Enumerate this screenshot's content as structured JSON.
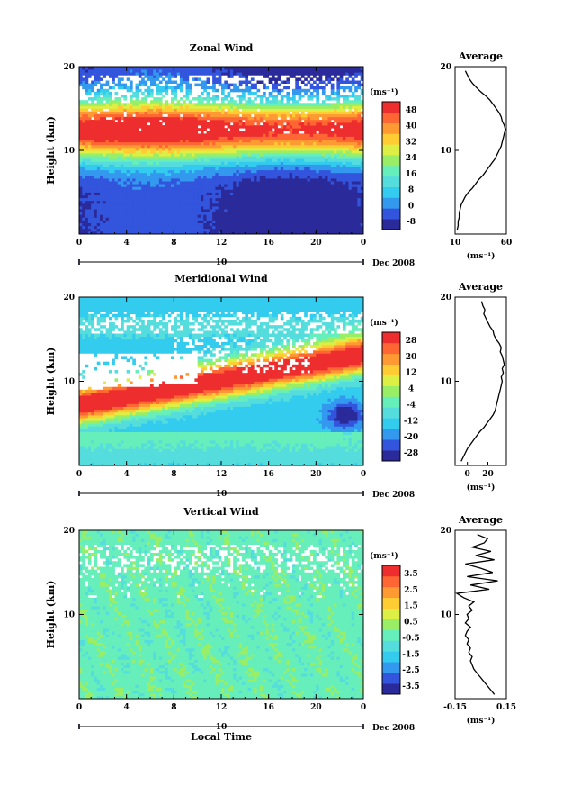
{
  "figure": {
    "x_label": "Local Time",
    "date_label": "Dec 2008",
    "date_day_label": "10",
    "y_label": "Height (km)",
    "avg_title": "Average",
    "unit_label": "(ms⁻¹)"
  },
  "chart_data": [
    {
      "type": "heatmap",
      "title": "Zonal Wind",
      "x_ticks": [
        "0",
        "4",
        "8",
        "12",
        "16",
        "20",
        "0"
      ],
      "y_ticks": [
        "20",
        "10"
      ],
      "xlim": [
        0,
        24
      ],
      "ylim": [
        0,
        20
      ],
      "colorbar": {
        "unit": "(ms⁻¹)",
        "ticks": [
          "48",
          "40",
          "32",
          "24",
          "16",
          "8",
          "0",
          "-8"
        ],
        "range": [
          -8,
          52
        ]
      },
      "profile": {
        "title": "Average",
        "x_ticks": [
          "10",
          "60"
        ],
        "xlim": [
          10,
          60
        ],
        "height": [
          0.5,
          1,
          1.5,
          2,
          2.5,
          3,
          3.5,
          4,
          4.5,
          5,
          5.5,
          6,
          6.5,
          7,
          7.5,
          8,
          8.5,
          9,
          9.5,
          10,
          10.5,
          11,
          11.5,
          12,
          12.5,
          13,
          13.5,
          14,
          14.5,
          15,
          15.5,
          16,
          16.5,
          17,
          17.5,
          18,
          18.5,
          19,
          19.5
        ],
        "values": [
          12,
          13,
          13,
          14,
          14,
          15,
          16,
          18,
          20,
          23,
          27,
          30,
          33,
          37,
          40,
          43,
          46,
          49,
          51,
          53,
          55,
          56,
          57,
          58,
          59,
          58,
          56,
          55,
          53,
          50,
          47,
          44,
          40,
          35,
          31,
          27,
          24,
          22,
          20
        ]
      }
    },
    {
      "type": "heatmap",
      "title": "Meridional Wind",
      "x_ticks": [
        "0",
        "4",
        "8",
        "12",
        "16",
        "20",
        "0"
      ],
      "y_ticks": [
        "20",
        "10"
      ],
      "xlim": [
        0,
        24
      ],
      "ylim": [
        0,
        20
      ],
      "colorbar": {
        "unit": "(ms⁻¹)",
        "ticks": [
          "28",
          "20",
          "12",
          "4",
          "-4",
          "-12",
          "-20",
          "-28"
        ],
        "range": [
          -32,
          32
        ]
      },
      "profile": {
        "title": "Average",
        "x_ticks": [
          "0",
          "20"
        ],
        "xlim": [
          -12,
          38
        ],
        "height": [
          0.5,
          1,
          1.5,
          2,
          2.5,
          3,
          3.5,
          4,
          4.5,
          5,
          5.5,
          6,
          6.5,
          7,
          7.5,
          8,
          8.5,
          9,
          9.5,
          10,
          10.5,
          11,
          11.5,
          12,
          12.5,
          13,
          13.5,
          14,
          14.5,
          15,
          15.5,
          16,
          16.5,
          17,
          17.5,
          18,
          18.5,
          19,
          19.5
        ],
        "values": [
          -6,
          -4,
          -2,
          0,
          3,
          6,
          9,
          12,
          16,
          19,
          22,
          25,
          27,
          28,
          29,
          30,
          31,
          32,
          33,
          34,
          33,
          35,
          34,
          36,
          35,
          34,
          32,
          33,
          31,
          28,
          26,
          25,
          22,
          20,
          18,
          16,
          17,
          15,
          14
        ]
      }
    },
    {
      "type": "heatmap",
      "title": "Vertical Wind",
      "x_ticks": [
        "0",
        "4",
        "8",
        "12",
        "16",
        "20",
        "0"
      ],
      "y_ticks": [
        "20",
        "10"
      ],
      "xlim": [
        0,
        24
      ],
      "ylim": [
        0,
        20
      ],
      "colorbar": {
        "unit": "(ms⁻¹)",
        "ticks": [
          "3.5",
          "2.5",
          "1.5",
          "0.5",
          "-0.5",
          "-1.5",
          "-2.5",
          "-3.5"
        ],
        "range": [
          -4,
          4
        ]
      },
      "profile": {
        "title": "Average",
        "x_ticks": [
          "-0.15",
          "0.15"
        ],
        "xlim": [
          -0.15,
          0.15
        ],
        "height": [
          0.5,
          1,
          1.5,
          2,
          2.5,
          3,
          3.5,
          4,
          4.5,
          5,
          5.5,
          6,
          6.5,
          7,
          7.5,
          8,
          8.5,
          9,
          9.5,
          10,
          10.5,
          11,
          11.5,
          12,
          12.5,
          13,
          13.5,
          14,
          14.5,
          15,
          15.5,
          16,
          16.5,
          17,
          17.5,
          18,
          18.5,
          19,
          19.5
        ],
        "values": [
          0.08,
          0.06,
          0.04,
          0.02,
          0.0,
          -0.02,
          -0.04,
          -0.05,
          -0.06,
          -0.05,
          -0.07,
          -0.06,
          -0.08,
          -0.07,
          -0.09,
          -0.08,
          -0.06,
          -0.09,
          -0.07,
          -0.08,
          -0.05,
          -0.07,
          -0.04,
          -0.1,
          -0.14,
          0.05,
          -0.06,
          0.1,
          -0.08,
          0.07,
          0.0,
          -0.09,
          0.08,
          -0.03,
          0.06,
          -0.05,
          0.02,
          0.04,
          -0.02
        ]
      }
    }
  ]
}
